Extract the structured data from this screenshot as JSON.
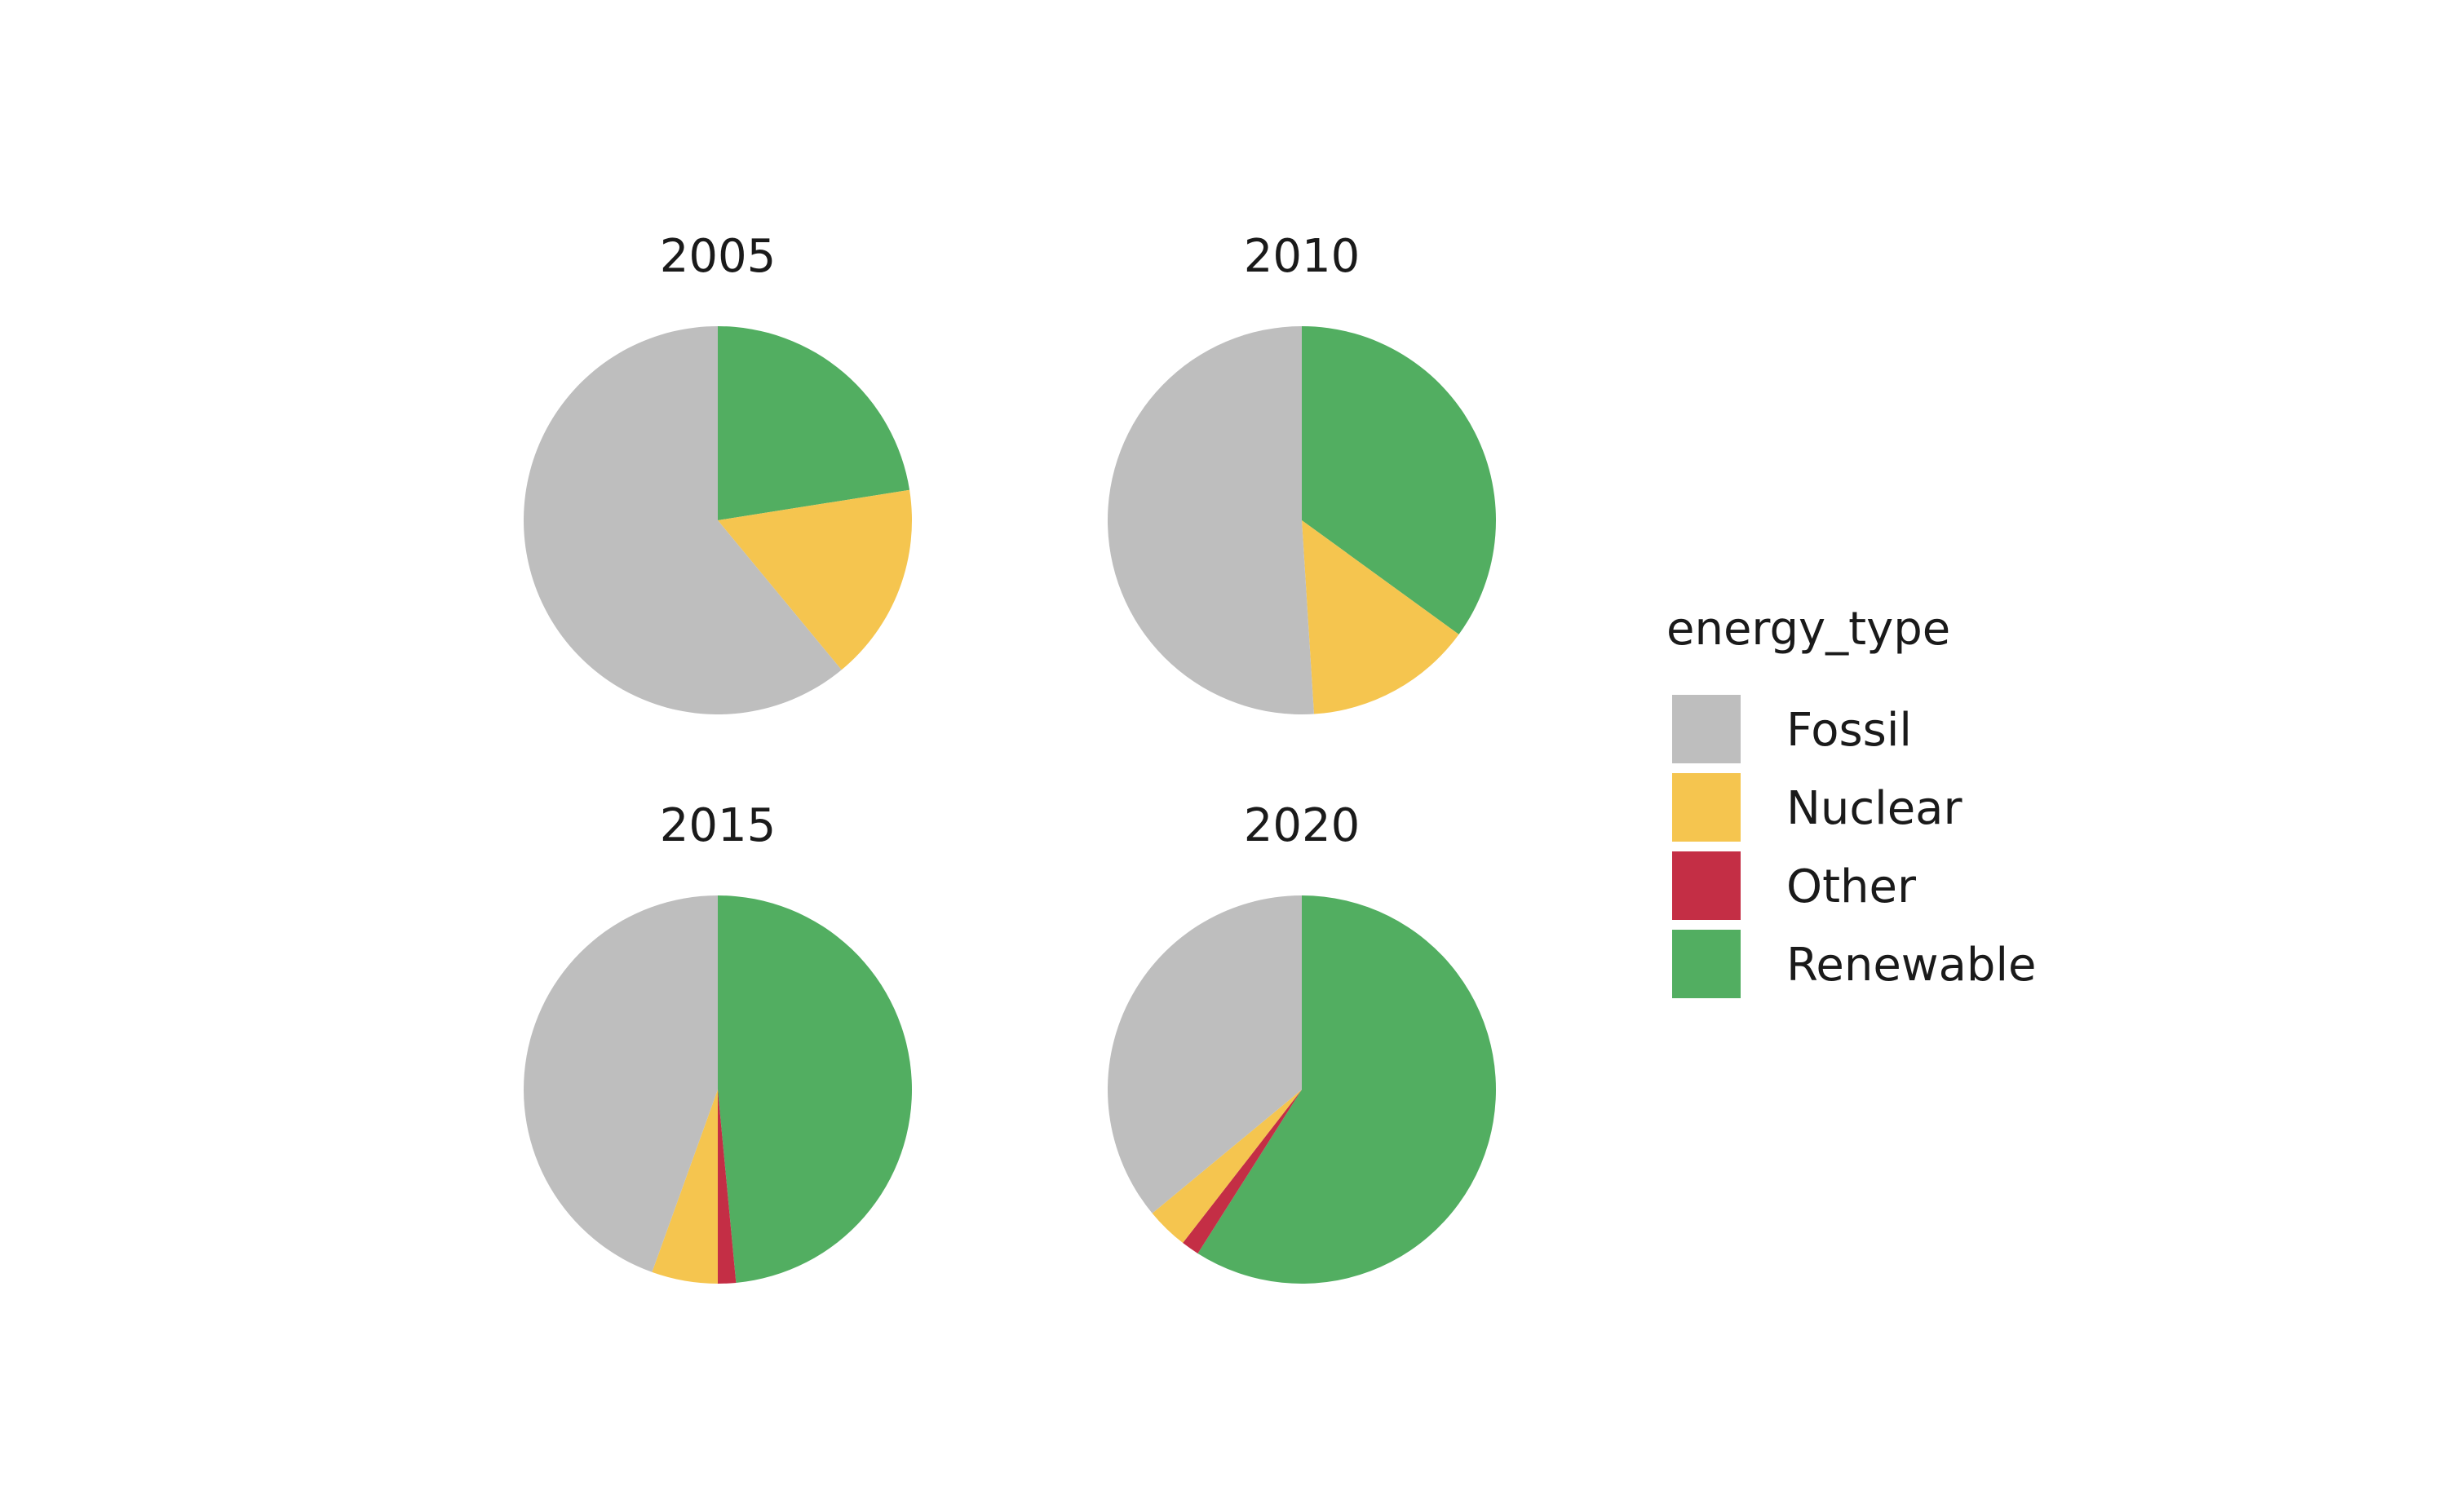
{
  "chart_data": {
    "type": "pie",
    "facet_by": "year",
    "legend": {
      "title": "energy_type",
      "placement": "right",
      "entries": [
        {
          "name": "Fossil",
          "color": "#BEBEBE"
        },
        {
          "name": "Nuclear",
          "color": "#F5C54F"
        },
        {
          "name": "Other",
          "color": "#C42E45"
        },
        {
          "name": "Renewable",
          "color": "#52AE61"
        }
      ]
    },
    "slice_order_clockwise_from_top": [
      "Renewable",
      "Other",
      "Nuclear",
      "Fossil"
    ],
    "panels": [
      {
        "title": "2005",
        "values": {
          "Renewable": 22.5,
          "Other": 0.0,
          "Nuclear": 16.5,
          "Fossil": 61.0
        }
      },
      {
        "title": "2010",
        "values": {
          "Renewable": 35.0,
          "Other": 0.0,
          "Nuclear": 14.0,
          "Fossil": 51.0
        }
      },
      {
        "title": "2015",
        "values": {
          "Renewable": 48.5,
          "Other": 1.5,
          "Nuclear": 5.5,
          "Fossil": 44.5
        }
      },
      {
        "title": "2020",
        "values": {
          "Renewable": 59.0,
          "Other": 1.5,
          "Nuclear": 3.5,
          "Fossil": 36.0
        }
      }
    ]
  }
}
